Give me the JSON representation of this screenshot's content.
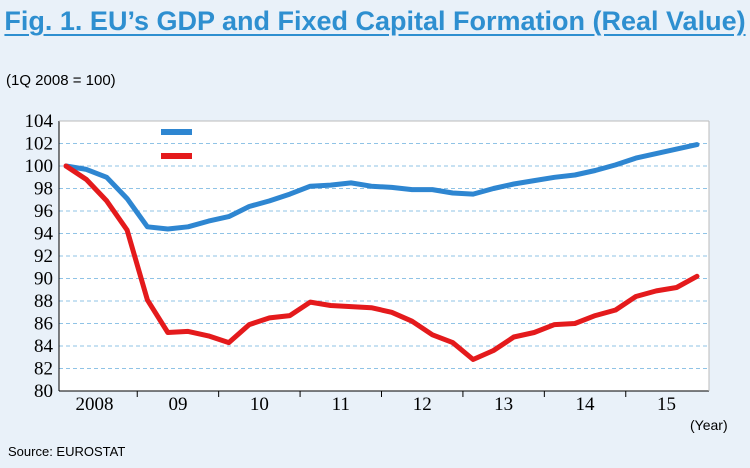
{
  "title": "Fig. 1. EU’s GDP and Fixed Capital Formation (Real Value)",
  "unit_label": "(1Q 2008 = 100)",
  "source": "Source: EUROSTAT",
  "x_unit_label": "(Year)",
  "chart_data": {
    "type": "line",
    "ylim": [
      80,
      104
    ],
    "yticks": [
      80,
      82,
      84,
      86,
      88,
      90,
      92,
      94,
      96,
      98,
      100,
      102,
      104
    ],
    "x_tick_labels": [
      "2008",
      "09",
      "10",
      "11",
      "12",
      "13",
      "14",
      "15"
    ],
    "grid": true,
    "legend": "top-left",
    "series": [
      {
        "color": "#2e86d1",
        "values": [
          100,
          99.7,
          99.0,
          97.1,
          94.6,
          94.4,
          94.6,
          95.1,
          95.5,
          96.4,
          96.9,
          97.5,
          98.2,
          98.3,
          98.5,
          98.2,
          98.1,
          97.9,
          97.9,
          97.6,
          97.5,
          98.0,
          98.4,
          98.7,
          99.0,
          99.2,
          99.6,
          100.1,
          100.7,
          101.1,
          101.5,
          101.9
        ]
      },
      {
        "color": "#e41a1c",
        "values": [
          100,
          98.8,
          96.9,
          94.3,
          88.1,
          85.2,
          85.3,
          84.9,
          84.3,
          85.9,
          86.5,
          86.7,
          87.9,
          87.6,
          87.5,
          87.4,
          87.0,
          86.2,
          85.0,
          84.3,
          82.8,
          83.6,
          84.8,
          85.2,
          85.9,
          86.0,
          86.7,
          87.2,
          88.4,
          88.9,
          89.2,
          90.2
        ]
      }
    ]
  }
}
